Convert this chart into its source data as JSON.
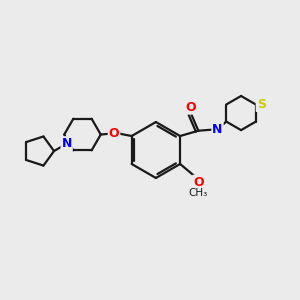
{
  "background_color": "#ebebeb",
  "bond_color": "#1a1a1a",
  "N_color": "#0000ff",
  "O_color": "#ff0000",
  "S_color": "#cccc00",
  "line_width": 1.6,
  "figsize": [
    3.0,
    3.0
  ],
  "dpi": 100,
  "xlim": [
    0,
    10
  ],
  "ylim": [
    0,
    10
  ]
}
